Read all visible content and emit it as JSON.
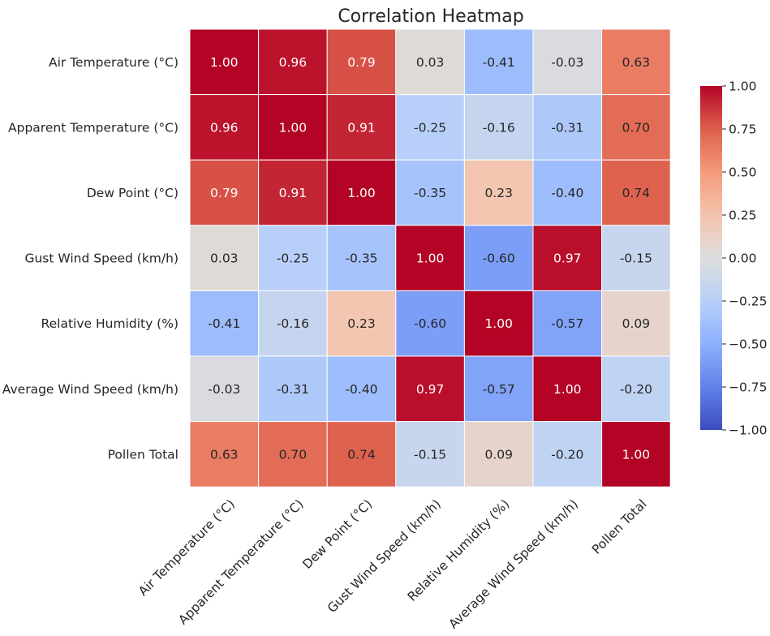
{
  "chart_data": {
    "type": "heatmap",
    "title": "Correlation Heatmap",
    "xlabel": "",
    "ylabel": "",
    "rows": [
      "Air Temperature (°C)",
      "Apparent Temperature (°C)",
      "Dew Point (°C)",
      "Gust Wind Speed (km/h)",
      "Relative Humidity (%)",
      "Average Wind Speed (km/h)",
      "Pollen Total"
    ],
    "columns": [
      "Air Temperature (°C)",
      "Apparent Temperature (°C)",
      "Dew Point (°C)",
      "Gust Wind Speed (km/h)",
      "Relative Humidity (%)",
      "Average Wind Speed (km/h)",
      "Pollen Total"
    ],
    "values": [
      [
        1.0,
        0.96,
        0.79,
        0.03,
        -0.41,
        -0.03,
        0.63
      ],
      [
        0.96,
        1.0,
        0.91,
        -0.25,
        -0.16,
        -0.31,
        0.7
      ],
      [
        0.79,
        0.91,
        1.0,
        -0.35,
        0.23,
        -0.4,
        0.74
      ],
      [
        0.03,
        -0.25,
        -0.35,
        1.0,
        -0.6,
        0.97,
        -0.15
      ],
      [
        -0.41,
        -0.16,
        0.23,
        -0.6,
        1.0,
        -0.57,
        0.09
      ],
      [
        -0.03,
        -0.31,
        -0.4,
        0.97,
        -0.57,
        1.0,
        -0.2
      ],
      [
        0.63,
        0.7,
        0.74,
        -0.15,
        0.09,
        -0.2,
        1.0
      ]
    ],
    "annotation_format": "0.00",
    "colormap": "coolwarm",
    "value_range": [
      -1.0,
      1.0
    ],
    "colorbar_ticks": [
      "1.00",
      "0.75",
      "0.50",
      "0.25",
      "0.00",
      "−0.25",
      "−0.50",
      "−0.75",
      "−1.00"
    ],
    "colorbar_tick_values": [
      1.0,
      0.75,
      0.5,
      0.25,
      0.0,
      -0.25,
      -0.5,
      -0.75,
      -1.0
    ],
    "colorbar_placement": "right",
    "cell_border_color": "#ffffff",
    "grid": false
  }
}
